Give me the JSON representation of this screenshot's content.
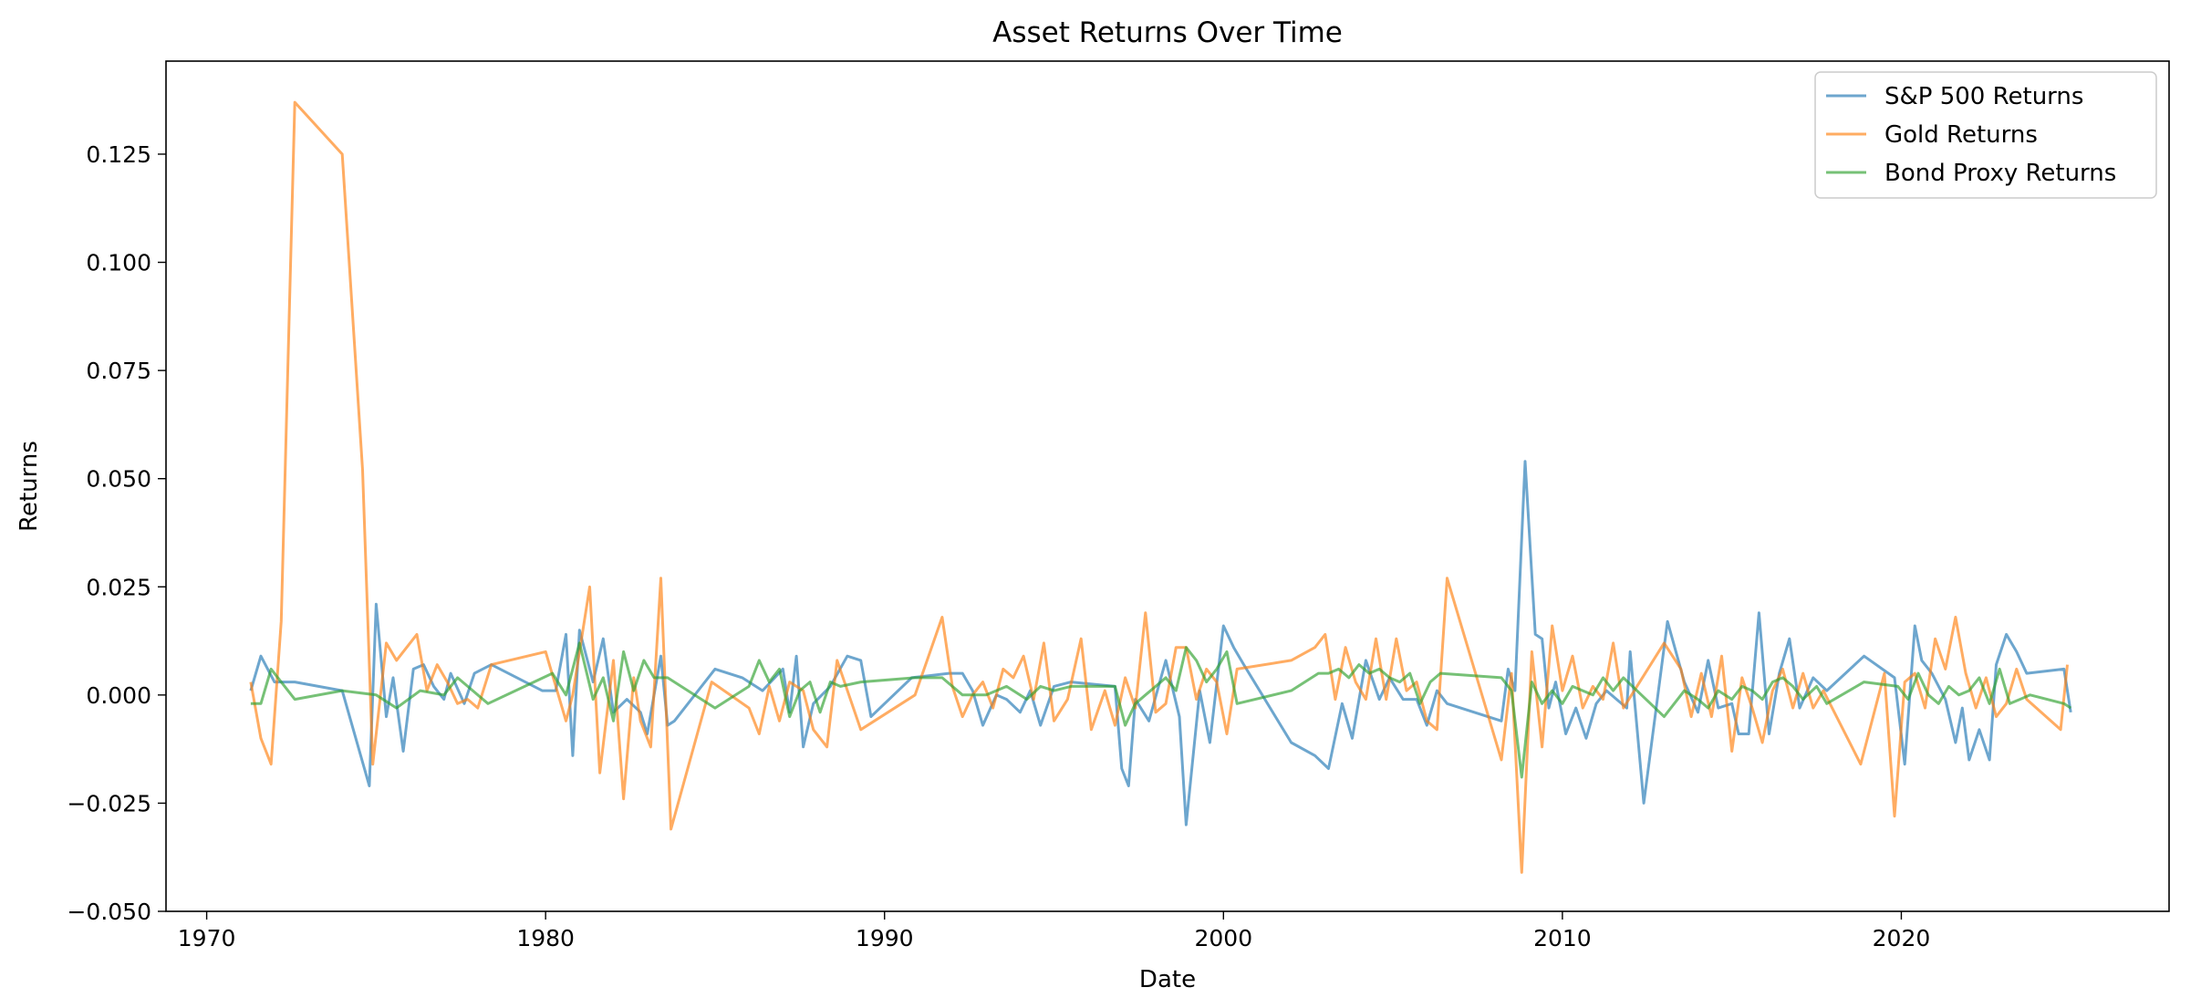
{
  "chart_data": {
    "type": "line",
    "title": "Asset Returns Over Time",
    "xlabel": "Date",
    "ylabel": "Returns",
    "xlim": [
      1968.8,
      2027.9
    ],
    "ylim": [
      -0.05,
      0.1465
    ],
    "x_ticks": [
      1970,
      1980,
      1990,
      2000,
      2010,
      2020
    ],
    "y_ticks": [
      -0.05,
      -0.025,
      0.0,
      0.025,
      0.05,
      0.075,
      0.1,
      0.125
    ],
    "y_tick_labels": [
      "−0.050",
      "−0.025",
      "0.000",
      "0.025",
      "0.050",
      "0.075",
      "0.100",
      "0.125"
    ],
    "grid": false,
    "legend_position": "top-right",
    "series": [
      {
        "name": "S&P 500 Returns",
        "color": "#1f77b4",
        "x": [
          1971.3,
          1971.6,
          1972.0,
          1972.6,
          1974.0,
          1974.8,
          1975.0,
          1975.3,
          1975.5,
          1975.8,
          1976.1,
          1976.4,
          1976.7,
          1977.0,
          1977.2,
          1977.6,
          1977.9,
          1978.4,
          1979.9,
          1980.3,
          1980.6,
          1980.8,
          1981.0,
          1981.4,
          1981.7,
          1982.0,
          1982.4,
          1982.8,
          1983.0,
          1983.4,
          1983.6,
          1983.8,
          1985.0,
          1985.8,
          1986.4,
          1987.0,
          1987.2,
          1987.4,
          1987.6,
          1987.9,
          1988.4,
          1988.9,
          1989.3,
          1989.6,
          1990.8,
          1991.9,
          1992.3,
          1992.6,
          1992.9,
          1993.3,
          1993.6,
          1994.0,
          1994.3,
          1994.6,
          1995.0,
          1995.5,
          1996.8,
          1997.0,
          1997.2,
          1997.4,
          1997.8,
          1998.3,
          1998.7,
          1998.9,
          1999.3,
          1999.6,
          2000.0,
          2000.3,
          2000.6,
          2002.0,
          2002.7,
          2003.1,
          2003.5,
          2003.8,
          2004.2,
          2004.6,
          2004.9,
          2005.3,
          2005.7,
          2006.0,
          2006.3,
          2006.6,
          2008.2,
          2008.4,
          2008.6,
          2008.9,
          2009.2,
          2009.4,
          2009.6,
          2009.8,
          2010.1,
          2010.4,
          2010.7,
          2011.0,
          2011.3,
          2011.6,
          2011.9,
          2012.0,
          2012.4,
          2013.1,
          2013.6,
          2014.0,
          2014.3,
          2014.6,
          2015.0,
          2015.2,
          2015.5,
          2015.8,
          2016.1,
          2016.4,
          2016.7,
          2017.0,
          2017.4,
          2017.8,
          2018.9,
          2019.8,
          2020.1,
          2020.4,
          2020.6,
          2020.9,
          2021.3,
          2021.6,
          2021.8,
          2022.0,
          2022.3,
          2022.6,
          2022.8,
          2023.1,
          2023.4,
          2023.7,
          2024.8,
          2025.0
        ],
        "y": [
          0.001,
          0.009,
          0.003,
          0.003,
          0.001,
          -0.021,
          0.021,
          -0.005,
          0.004,
          -0.013,
          0.006,
          0.007,
          0.002,
          -0.001,
          0.005,
          -0.002,
          0.005,
          0.007,
          0.001,
          0.001,
          0.014,
          -0.014,
          0.015,
          0.003,
          0.013,
          -0.004,
          -0.001,
          -0.004,
          -0.009,
          0.009,
          -0.007,
          -0.006,
          0.006,
          0.004,
          0.001,
          0.006,
          -0.004,
          0.009,
          -0.012,
          -0.002,
          0.002,
          0.009,
          0.008,
          -0.005,
          0.004,
          0.005,
          0.005,
          0.001,
          -0.007,
          0.0,
          -0.001,
          -0.004,
          0.001,
          -0.007,
          0.002,
          0.003,
          0.002,
          -0.017,
          -0.021,
          -0.001,
          -0.006,
          0.008,
          -0.005,
          -0.03,
          0.001,
          -0.011,
          0.016,
          0.011,
          0.007,
          -0.011,
          -0.014,
          -0.017,
          -0.002,
          -0.01,
          0.008,
          -0.001,
          0.004,
          -0.001,
          -0.001,
          -0.007,
          0.001,
          -0.002,
          -0.006,
          0.006,
          0.001,
          0.054,
          0.014,
          0.013,
          -0.003,
          0.003,
          -0.009,
          -0.003,
          -0.01,
          -0.002,
          0.001,
          -0.001,
          -0.003,
          0.01,
          -0.025,
          0.017,
          0.003,
          -0.004,
          0.008,
          -0.003,
          -0.002,
          -0.009,
          -0.009,
          0.019,
          -0.009,
          0.005,
          0.013,
          -0.003,
          0.004,
          0.001,
          0.009,
          0.004,
          -0.016,
          0.016,
          0.008,
          0.005,
          -0.001,
          -0.011,
          -0.003,
          -0.015,
          -0.008,
          -0.015,
          0.007,
          0.014,
          0.01,
          0.005,
          0.006,
          -0.004
        ],
        "opacity": 0.65
      },
      {
        "name": "Gold Returns",
        "color": "#ff7f0e",
        "x": [
          1971.3,
          1971.6,
          1971.9,
          1972.2,
          1972.6,
          1974.0,
          1974.6,
          1974.9,
          1975.3,
          1975.6,
          1976.2,
          1976.5,
          1976.8,
          1977.1,
          1977.4,
          1977.7,
          1978.0,
          1978.4,
          1980.0,
          1980.6,
          1980.8,
          1981.3,
          1981.6,
          1982.0,
          1982.3,
          1982.6,
          1982.8,
          1983.1,
          1983.4,
          1983.7,
          1984.9,
          1986.0,
          1986.3,
          1986.6,
          1986.9,
          1987.2,
          1987.6,
          1987.9,
          1988.3,
          1988.6,
          1989.3,
          1990.9,
          1991.7,
          1992.0,
          1992.3,
          1992.6,
          1992.9,
          1993.2,
          1993.5,
          1993.8,
          1994.1,
          1994.4,
          1994.7,
          1995.0,
          1995.4,
          1995.8,
          1996.1,
          1996.5,
          1996.8,
          1997.1,
          1997.4,
          1997.7,
          1998.0,
          1998.3,
          1998.6,
          1998.9,
          1999.2,
          1999.5,
          1999.8,
          2000.1,
          2000.4,
          2002.0,
          2002.7,
          2003.0,
          2003.3,
          2003.6,
          2003.9,
          2004.2,
          2004.5,
          2004.8,
          2005.1,
          2005.4,
          2005.7,
          2006.0,
          2006.3,
          2006.6,
          2008.2,
          2008.5,
          2008.8,
          2009.1,
          2009.4,
          2009.7,
          2010.0,
          2010.3,
          2010.6,
          2010.9,
          2011.2,
          2011.5,
          2011.8,
          2013.0,
          2013.5,
          2013.8,
          2014.1,
          2014.4,
          2014.7,
          2015.0,
          2015.3,
          2015.6,
          2015.9,
          2016.2,
          2016.5,
          2016.8,
          2017.1,
          2017.4,
          2017.7,
          2018.8,
          2019.5,
          2019.8,
          2020.1,
          2020.4,
          2020.7,
          2021.0,
          2021.3,
          2021.6,
          2021.9,
          2022.2,
          2022.5,
          2022.8,
          2023.1,
          2023.4,
          2023.7,
          2024.7,
          2024.9
        ],
        "y": [
          0.003,
          -0.01,
          -0.016,
          0.017,
          0.137,
          0.125,
          0.052,
          -0.016,
          0.012,
          0.008,
          0.014,
          0.001,
          0.007,
          0.003,
          -0.002,
          -0.001,
          -0.003,
          0.007,
          0.01,
          -0.006,
          0.0,
          0.025,
          -0.018,
          0.008,
          -0.024,
          0.004,
          -0.006,
          -0.012,
          0.027,
          -0.031,
          0.003,
          -0.003,
          -0.009,
          0.002,
          -0.006,
          0.003,
          0.001,
          -0.008,
          -0.012,
          0.008,
          -0.008,
          0.0,
          0.018,
          0.002,
          -0.005,
          0.0,
          0.003,
          -0.003,
          0.006,
          0.004,
          0.009,
          -0.001,
          0.012,
          -0.006,
          -0.001,
          0.013,
          -0.008,
          0.001,
          -0.007,
          0.004,
          -0.003,
          0.019,
          -0.004,
          -0.002,
          0.011,
          0.011,
          -0.001,
          0.006,
          0.003,
          -0.009,
          0.006,
          0.008,
          0.011,
          0.014,
          -0.001,
          0.011,
          0.003,
          -0.001,
          0.013,
          -0.001,
          0.013,
          0.001,
          0.003,
          -0.006,
          -0.008,
          0.027,
          -0.015,
          0.005,
          -0.041,
          0.01,
          -0.012,
          0.016,
          0.001,
          0.009,
          -0.003,
          0.002,
          -0.001,
          0.012,
          -0.003,
          0.012,
          0.006,
          -0.005,
          0.005,
          -0.005,
          0.009,
          -0.013,
          0.004,
          -0.003,
          -0.011,
          0.001,
          0.006,
          -0.003,
          0.005,
          -0.003,
          0.001,
          -0.016,
          0.005,
          -0.028,
          0.003,
          0.005,
          -0.003,
          0.013,
          0.006,
          0.018,
          0.005,
          -0.003,
          0.004,
          -0.005,
          -0.002,
          0.006,
          -0.001,
          -0.008,
          0.007
        ],
        "opacity": 0.65
      },
      {
        "name": "Bond Proxy Returns",
        "color": "#2ca02c",
        "x": [
          1971.3,
          1971.6,
          1971.9,
          1972.6,
          1974.0,
          1975.0,
          1975.6,
          1976.3,
          1977.0,
          1977.4,
          1978.3,
          1980.2,
          1980.6,
          1981.0,
          1981.4,
          1981.7,
          1982.0,
          1982.3,
          1982.6,
          1982.9,
          1983.2,
          1983.6,
          1985.0,
          1986.0,
          1986.3,
          1986.6,
          1986.9,
          1987.2,
          1987.5,
          1987.8,
          1988.1,
          1988.4,
          1988.7,
          1989.3,
          1990.9,
          1991.7,
          1992.3,
          1993.0,
          1993.6,
          1994.2,
          1994.6,
          1995.0,
          1995.5,
          1996.8,
          1997.1,
          1997.4,
          1997.7,
          1998.0,
          1998.3,
          1998.6,
          1998.9,
          1999.2,
          1999.5,
          1999.8,
          2000.1,
          2000.4,
          2002.0,
          2002.8,
          2003.1,
          2003.4,
          2003.7,
          2004.0,
          2004.3,
          2004.6,
          2004.9,
          2005.2,
          2005.5,
          2005.8,
          2006.1,
          2006.4,
          2008.2,
          2008.5,
          2008.8,
          2009.1,
          2009.4,
          2009.7,
          2010.0,
          2010.3,
          2010.6,
          2010.9,
          2011.2,
          2011.5,
          2011.8,
          2013.0,
          2013.6,
          2014.0,
          2014.3,
          2014.6,
          2015.0,
          2015.3,
          2015.6,
          2015.9,
          2016.2,
          2016.5,
          2016.8,
          2017.1,
          2017.5,
          2017.8,
          2018.9,
          2019.9,
          2020.2,
          2020.5,
          2020.8,
          2021.1,
          2021.4,
          2021.7,
          2022.0,
          2022.3,
          2022.6,
          2022.9,
          2023.2,
          2023.5,
          2023.8,
          2024.8,
          2025.0
        ],
        "y": [
          -0.002,
          -0.002,
          0.006,
          -0.001,
          0.001,
          0.0,
          -0.003,
          0.001,
          0.0,
          0.004,
          -0.002,
          0.005,
          0.0,
          0.012,
          -0.001,
          0.004,
          -0.006,
          0.01,
          0.001,
          0.008,
          0.004,
          0.004,
          -0.003,
          0.002,
          0.008,
          0.003,
          0.006,
          -0.005,
          0.001,
          0.003,
          -0.004,
          0.003,
          0.002,
          0.003,
          0.004,
          0.004,
          0.0,
          0.0,
          0.002,
          -0.001,
          0.002,
          0.001,
          0.002,
          0.002,
          -0.007,
          -0.002,
          0.0,
          0.002,
          0.004,
          0.001,
          0.011,
          0.008,
          0.003,
          0.006,
          0.01,
          -0.002,
          0.001,
          0.005,
          0.005,
          0.006,
          0.004,
          0.007,
          0.005,
          0.006,
          0.004,
          0.003,
          0.005,
          -0.002,
          0.003,
          0.005,
          0.004,
          0.001,
          -0.019,
          0.003,
          -0.002,
          0.001,
          -0.002,
          0.002,
          0.001,
          0.0,
          0.004,
          0.001,
          0.004,
          -0.005,
          0.001,
          -0.001,
          -0.003,
          0.001,
          -0.001,
          0.002,
          0.001,
          -0.001,
          0.003,
          0.004,
          0.002,
          -0.001,
          0.002,
          -0.002,
          0.003,
          0.002,
          -0.001,
          0.005,
          0.0,
          -0.002,
          0.002,
          0.0,
          0.001,
          0.004,
          -0.002,
          0.006,
          -0.002,
          -0.001,
          0.0,
          -0.002,
          -0.003
        ],
        "opacity": 0.65
      }
    ]
  }
}
